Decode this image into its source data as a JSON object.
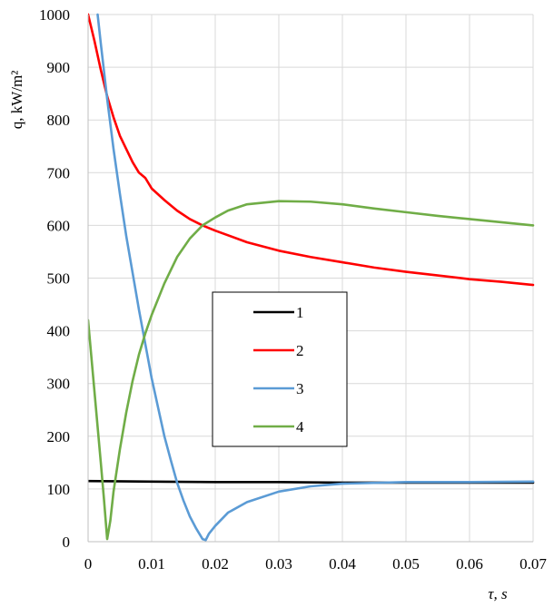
{
  "chart_data": {
    "type": "line",
    "title": "",
    "xlabel": "τ, s",
    "ylabel": "q, kW/m²",
    "xlim": [
      0,
      0.07
    ],
    "ylim": [
      0,
      1000
    ],
    "x_ticks": [
      "0",
      "0.01",
      "0.02",
      "0.03",
      "0.04",
      "0.05",
      "0.06",
      "0.07"
    ],
    "y_ticks": [
      "0",
      "100",
      "200",
      "300",
      "400",
      "500",
      "600",
      "700",
      "800",
      "900",
      "1000"
    ],
    "grid": true,
    "legend_position": "center",
    "series": [
      {
        "name": "1",
        "color": "#000000",
        "points": [
          [
            0,
            115
          ],
          [
            0.01,
            114
          ],
          [
            0.02,
            113
          ],
          [
            0.03,
            113
          ],
          [
            0.04,
            112
          ],
          [
            0.05,
            112
          ],
          [
            0.06,
            112
          ],
          [
            0.07,
            112
          ]
        ]
      },
      {
        "name": "2",
        "color": "#ff0000",
        "points": [
          [
            0,
            1000
          ],
          [
            0.001,
            950
          ],
          [
            0.002,
            895
          ],
          [
            0.003,
            845
          ],
          [
            0.004,
            805
          ],
          [
            0.005,
            770
          ],
          [
            0.006,
            745
          ],
          [
            0.007,
            720
          ],
          [
            0.008,
            700
          ],
          [
            0.009,
            690
          ],
          [
            0.01,
            670
          ],
          [
            0.012,
            648
          ],
          [
            0.014,
            628
          ],
          [
            0.016,
            612
          ],
          [
            0.018,
            600
          ],
          [
            0.02,
            590
          ],
          [
            0.025,
            568
          ],
          [
            0.03,
            552
          ],
          [
            0.035,
            540
          ],
          [
            0.04,
            530
          ],
          [
            0.045,
            520
          ],
          [
            0.05,
            512
          ],
          [
            0.055,
            505
          ],
          [
            0.06,
            498
          ],
          [
            0.065,
            493
          ],
          [
            0.07,
            487
          ]
        ]
      },
      {
        "name": "3",
        "color": "#5b9bd5",
        "points": [
          [
            0.0015,
            1000
          ],
          [
            0.002,
            945
          ],
          [
            0.003,
            840
          ],
          [
            0.004,
            745
          ],
          [
            0.005,
            660
          ],
          [
            0.006,
            580
          ],
          [
            0.007,
            510
          ],
          [
            0.008,
            440
          ],
          [
            0.009,
            375
          ],
          [
            0.01,
            310
          ],
          [
            0.011,
            255
          ],
          [
            0.012,
            200
          ],
          [
            0.013,
            155
          ],
          [
            0.014,
            112
          ],
          [
            0.015,
            78
          ],
          [
            0.016,
            48
          ],
          [
            0.017,
            25
          ],
          [
            0.018,
            5
          ],
          [
            0.0185,
            3
          ],
          [
            0.019,
            15
          ],
          [
            0.02,
            30
          ],
          [
            0.022,
            55
          ],
          [
            0.025,
            75
          ],
          [
            0.03,
            95
          ],
          [
            0.035,
            105
          ],
          [
            0.04,
            110
          ],
          [
            0.05,
            113
          ],
          [
            0.06,
            113
          ],
          [
            0.07,
            114
          ]
        ]
      },
      {
        "name": "4",
        "color": "#70ad47",
        "points": [
          [
            0,
            420
          ],
          [
            0.001,
            285
          ],
          [
            0.002,
            150
          ],
          [
            0.0025,
            80
          ],
          [
            0.003,
            5
          ],
          [
            0.0035,
            40
          ],
          [
            0.004,
            95
          ],
          [
            0.005,
            175
          ],
          [
            0.006,
            245
          ],
          [
            0.007,
            305
          ],
          [
            0.008,
            355
          ],
          [
            0.009,
            395
          ],
          [
            0.01,
            430
          ],
          [
            0.012,
            490
          ],
          [
            0.014,
            540
          ],
          [
            0.016,
            575
          ],
          [
            0.018,
            600
          ],
          [
            0.02,
            615
          ],
          [
            0.022,
            628
          ],
          [
            0.025,
            640
          ],
          [
            0.03,
            646
          ],
          [
            0.035,
            645
          ],
          [
            0.04,
            640
          ],
          [
            0.045,
            632
          ],
          [
            0.05,
            625
          ],
          [
            0.055,
            618
          ],
          [
            0.06,
            612
          ],
          [
            0.065,
            606
          ],
          [
            0.07,
            600
          ]
        ]
      }
    ]
  }
}
